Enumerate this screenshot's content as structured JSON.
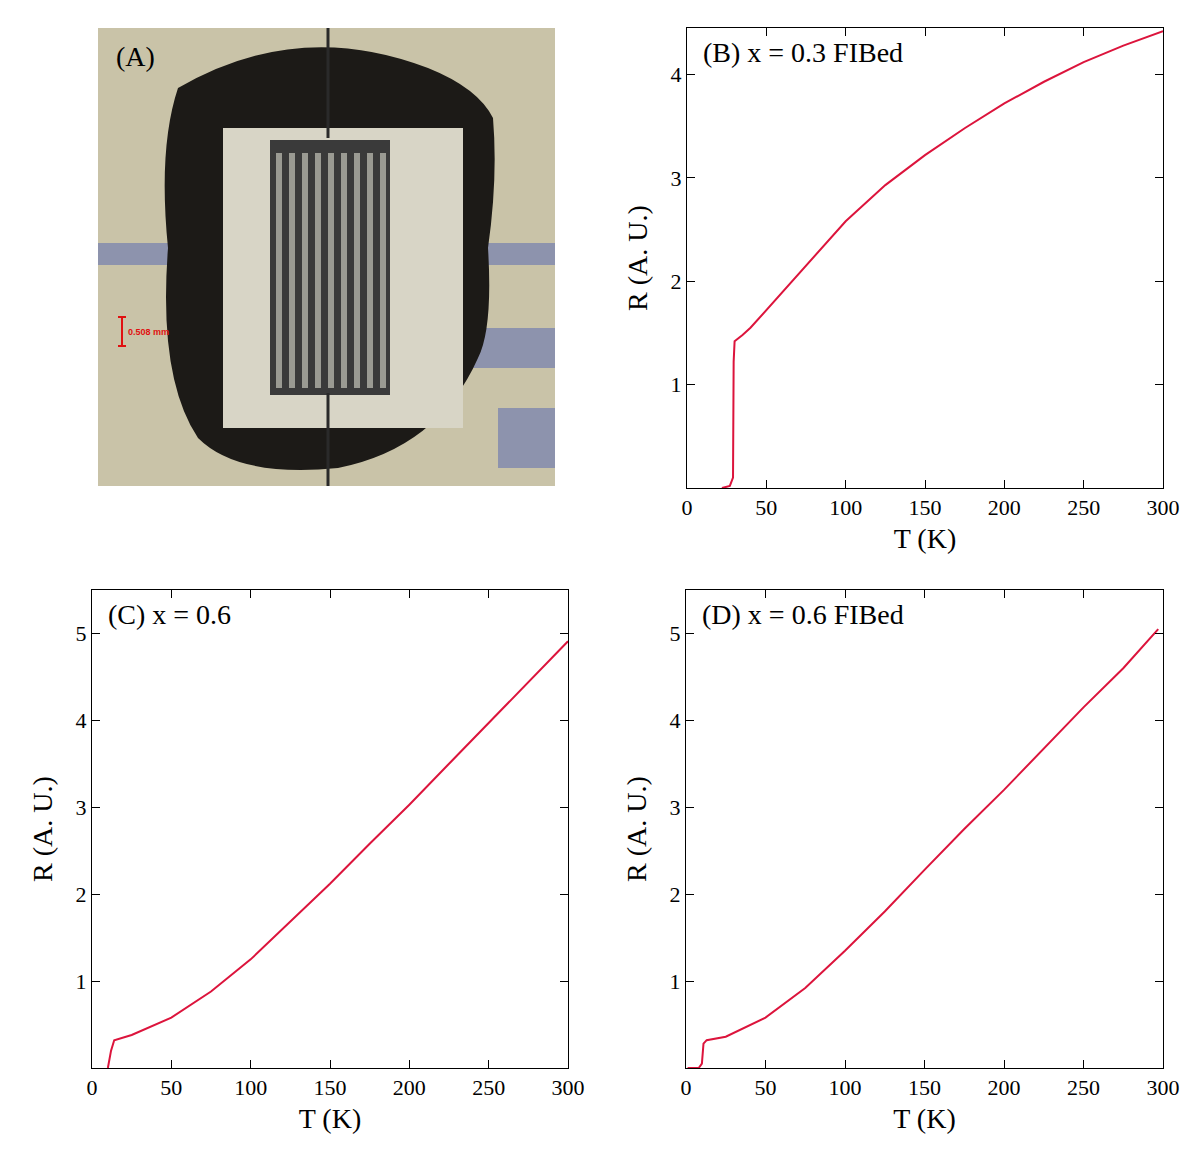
{
  "panel_a": {
    "label": "(A)",
    "scale_bar": "0.508 mm"
  },
  "chart_data": [
    {
      "type": "line",
      "title": "(B) x = 0.3 FIBed",
      "x_label": "T (K)",
      "y_label": "R (A. U.)",
      "color": "#dc143c",
      "x": [
        22,
        27,
        29,
        29.2,
        29.4,
        30,
        35,
        40,
        50,
        60,
        75,
        100,
        125,
        150,
        175,
        200,
        225,
        250,
        275,
        300
      ],
      "values": [
        0,
        0.02,
        0.1,
        0.6,
        1.22,
        1.42,
        1.48,
        1.55,
        1.72,
        1.9,
        2.15,
        2.58,
        2.93,
        3.22,
        3.48,
        3.72,
        3.93,
        4.12,
        4.28,
        4.42
      ],
      "xlim": [
        0,
        300
      ],
      "ylim": [
        0,
        4.45
      ],
      "xticks": [
        0,
        50,
        100,
        150,
        200,
        250,
        300
      ],
      "yticks": [
        1,
        2,
        3,
        4
      ]
    },
    {
      "type": "line",
      "title": "(C) x = 0.6",
      "x_label": "T (K)",
      "y_label": "R (A. U.)",
      "color": "#dc143c",
      "x": [
        10,
        12,
        14,
        25,
        50,
        75,
        100,
        125,
        150,
        175,
        200,
        225,
        250,
        275,
        300
      ],
      "values": [
        0,
        0.2,
        0.32,
        0.38,
        0.58,
        0.88,
        1.25,
        1.68,
        2.12,
        2.58,
        3.03,
        3.5,
        3.97,
        4.44,
        4.91
      ],
      "xlim": [
        0,
        300
      ],
      "ylim": [
        0,
        5.5
      ],
      "xticks": [
        0,
        50,
        100,
        150,
        200,
        250,
        300
      ],
      "yticks": [
        1,
        2,
        3,
        4,
        5
      ]
    },
    {
      "type": "line",
      "title": "(D) x = 0.6 FIBed",
      "x_label": "T (K)",
      "y_label": "R (A. U.)",
      "color": "#dc143c",
      "x": [
        1,
        8,
        10,
        11,
        13,
        25,
        50,
        75,
        100,
        125,
        150,
        175,
        200,
        225,
        250,
        275,
        297
      ],
      "values": [
        0,
        0,
        0.05,
        0.28,
        0.32,
        0.36,
        0.58,
        0.92,
        1.35,
        1.8,
        2.28,
        2.75,
        3.2,
        3.68,
        4.15,
        4.6,
        5.05
      ],
      "xlim": [
        0,
        300
      ],
      "ylim": [
        0,
        5.5
      ],
      "xticks": [
        0,
        50,
        100,
        150,
        200,
        250,
        300
      ],
      "yticks": [
        1,
        2,
        3,
        4,
        5
      ]
    }
  ]
}
